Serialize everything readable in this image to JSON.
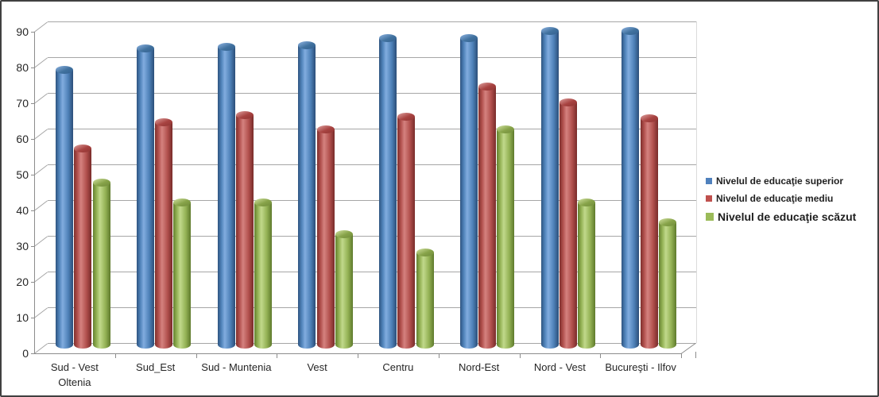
{
  "window": {
    "background": "#FFFFFF",
    "border_color": "#404040"
  },
  "chart_data": {
    "type": "bar",
    "subtype": "3d-cylinder-clustered",
    "title": "",
    "xlabel": "",
    "ylabel": "",
    "categories": [
      "Sud - Vest Oltenia",
      "Sud_Est",
      "Sud - Muntenia",
      "Vest",
      "Centru",
      "Nord-Est",
      "Nord - Vest",
      "Bucureşti - Ilfov"
    ],
    "series": [
      {
        "name": "Nivelul de educaţie superior",
        "color": "#4F81BD",
        "values": [
          77.5,
          83.5,
          84,
          84.5,
          86.5,
          86.5,
          88.5,
          88.5
        ]
      },
      {
        "name": "Nivelul de educaţie mediu",
        "color": "#C0504D",
        "values": [
          55.5,
          63,
          65,
          61,
          64.5,
          73,
          68.5,
          64
        ]
      },
      {
        "name": "Nivelul de educaţie scăzut",
        "color": "#9BBB59",
        "values": [
          46,
          40.5,
          40.5,
          31.5,
          26.5,
          61,
          40.5,
          35
        ]
      }
    ],
    "ylim": [
      0,
      90
    ],
    "ytick_step": 10,
    "ytick_labels": [
      "0",
      "10",
      "20",
      "30",
      "40",
      "50",
      "60",
      "70",
      "80",
      "90"
    ],
    "grid": true,
    "gridline_color": "#A6A6A6",
    "axis_color": "#8C8C8C",
    "text_color": "#262626",
    "legend_position": "right",
    "legend_text_sizes": [
      12,
      12,
      14
    ]
  }
}
